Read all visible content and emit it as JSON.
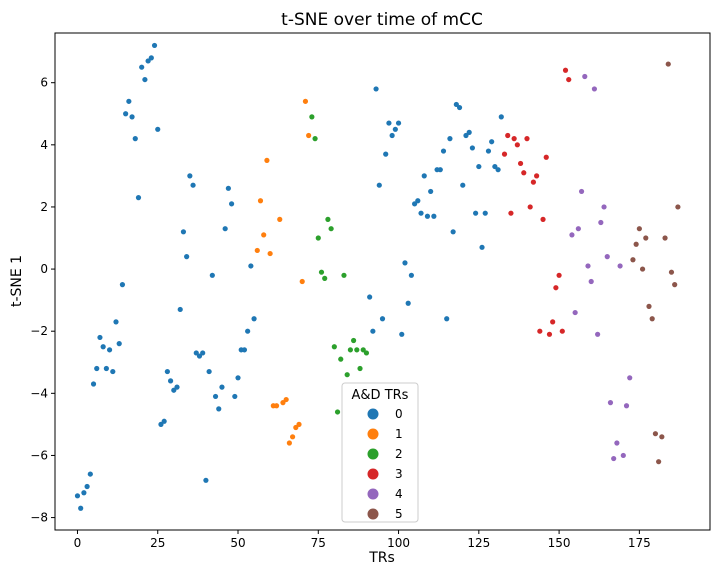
{
  "chart_data": {
    "type": "scatter",
    "title": "t-SNE over time of mCC",
    "xlabel": "TRs",
    "ylabel": "t-SNE 1",
    "xlim": [
      -7,
      197
    ],
    "ylim": [
      -8.4,
      7.6
    ],
    "xticks": [
      0,
      25,
      50,
      75,
      100,
      125,
      150,
      175
    ],
    "yticks": [
      -8,
      -6,
      -4,
      -2,
      0,
      2,
      4,
      6
    ],
    "grid": false,
    "legend": {
      "title": "A&D TRs",
      "placement": "lower-center"
    },
    "series": [
      {
        "name": "0",
        "color": "#1f77b4",
        "points": [
          [
            0,
            -7.3
          ],
          [
            1,
            -7.7
          ],
          [
            2,
            -7.2
          ],
          [
            3,
            -7.0
          ],
          [
            4,
            -6.6
          ],
          [
            5,
            -3.7
          ],
          [
            6,
            -3.2
          ],
          [
            7,
            -2.2
          ],
          [
            8,
            -2.5
          ],
          [
            9,
            -3.2
          ],
          [
            10,
            -2.6
          ],
          [
            11,
            -3.3
          ],
          [
            12,
            -1.7
          ],
          [
            13,
            -2.4
          ],
          [
            14,
            -0.5
          ],
          [
            15,
            5.0
          ],
          [
            16,
            5.4
          ],
          [
            17,
            4.9
          ],
          [
            18,
            4.2
          ],
          [
            19,
            2.3
          ],
          [
            20,
            6.5
          ],
          [
            21,
            6.1
          ],
          [
            22,
            6.7
          ],
          [
            23,
            6.8
          ],
          [
            24,
            7.2
          ],
          [
            25,
            4.5
          ],
          [
            26,
            -5.0
          ],
          [
            27,
            -4.9
          ],
          [
            28,
            -3.3
          ],
          [
            29,
            -3.6
          ],
          [
            30,
            -3.9
          ],
          [
            31,
            -3.8
          ],
          [
            32,
            -1.3
          ],
          [
            33,
            1.2
          ],
          [
            34,
            0.4
          ],
          [
            35,
            3.0
          ],
          [
            36,
            2.7
          ],
          [
            37,
            -2.7
          ],
          [
            38,
            -2.8
          ],
          [
            39,
            -2.7
          ],
          [
            40,
            -6.8
          ],
          [
            41,
            -3.3
          ],
          [
            42,
            -0.2
          ],
          [
            43,
            -4.1
          ],
          [
            44,
            -4.5
          ],
          [
            45,
            -3.8
          ],
          [
            46,
            1.3
          ],
          [
            47,
            2.6
          ],
          [
            48,
            2.1
          ],
          [
            49,
            -4.1
          ],
          [
            50,
            -3.5
          ],
          [
            51,
            -2.6
          ],
          [
            52,
            -2.6
          ],
          [
            53,
            -2.0
          ],
          [
            54,
            0.1
          ],
          [
            55,
            -1.6
          ],
          [
            91,
            -0.9
          ],
          [
            92,
            -2.0
          ],
          [
            93,
            5.8
          ],
          [
            94,
            2.7
          ],
          [
            95,
            -1.6
          ],
          [
            96,
            3.7
          ],
          [
            97,
            4.7
          ],
          [
            98,
            4.3
          ],
          [
            99,
            4.5
          ],
          [
            100,
            4.7
          ],
          [
            101,
            -2.1
          ],
          [
            102,
            0.2
          ],
          [
            103,
            -1.1
          ],
          [
            104,
            -0.2
          ],
          [
            105,
            2.1
          ],
          [
            106,
            2.2
          ],
          [
            107,
            1.8
          ],
          [
            108,
            3.0
          ],
          [
            109,
            1.7
          ],
          [
            110,
            2.5
          ],
          [
            111,
            1.7
          ],
          [
            112,
            3.2
          ],
          [
            113,
            3.2
          ],
          [
            114,
            3.8
          ],
          [
            115,
            -1.6
          ],
          [
            116,
            4.2
          ],
          [
            117,
            1.2
          ],
          [
            118,
            5.3
          ],
          [
            119,
            5.2
          ],
          [
            120,
            2.7
          ],
          [
            121,
            4.3
          ],
          [
            122,
            4.4
          ],
          [
            123,
            3.9
          ],
          [
            124,
            1.8
          ],
          [
            125,
            3.3
          ],
          [
            126,
            0.7
          ],
          [
            127,
            1.8
          ],
          [
            128,
            3.8
          ],
          [
            129,
            4.1
          ],
          [
            130,
            3.3
          ],
          [
            131,
            3.2
          ],
          [
            132,
            4.9
          ]
        ]
      },
      {
        "name": "1",
        "color": "#ff7f0e",
        "points": [
          [
            56,
            0.6
          ],
          [
            57,
            2.2
          ],
          [
            58,
            1.1
          ],
          [
            59,
            3.5
          ],
          [
            60,
            0.5
          ],
          [
            61,
            -4.4
          ],
          [
            62,
            -4.4
          ],
          [
            63,
            1.6
          ],
          [
            64,
            -4.3
          ],
          [
            65,
            -4.2
          ],
          [
            66,
            -5.6
          ],
          [
            67,
            -5.4
          ],
          [
            68,
            -5.1
          ],
          [
            69,
            -5.0
          ],
          [
            70,
            -0.4
          ],
          [
            71,
            5.4
          ],
          [
            72,
            4.3
          ]
        ]
      },
      {
        "name": "2",
        "color": "#2ca02c",
        "points": [
          [
            73,
            4.9
          ],
          [
            74,
            4.2
          ],
          [
            75,
            1.0
          ],
          [
            76,
            -0.1
          ],
          [
            77,
            -0.3
          ],
          [
            78,
            1.6
          ],
          [
            79,
            1.3
          ],
          [
            80,
            -2.5
          ],
          [
            81,
            -4.6
          ],
          [
            82,
            -2.9
          ],
          [
            83,
            -0.2
          ],
          [
            84,
            -3.4
          ],
          [
            85,
            -2.6
          ],
          [
            86,
            -2.3
          ],
          [
            87,
            -2.6
          ],
          [
            88,
            -3.2
          ],
          [
            89,
            -2.6
          ],
          [
            90,
            -2.7
          ]
        ]
      },
      {
        "name": "3",
        "color": "#d62728",
        "points": [
          [
            133,
            3.7
          ],
          [
            134,
            4.3
          ],
          [
            135,
            1.8
          ],
          [
            136,
            4.2
          ],
          [
            137,
            4.0
          ],
          [
            138,
            3.4
          ],
          [
            139,
            3.1
          ],
          [
            140,
            4.2
          ],
          [
            141,
            2.0
          ],
          [
            142,
            2.8
          ],
          [
            143,
            3.0
          ],
          [
            144,
            -2.0
          ],
          [
            145,
            1.6
          ],
          [
            146,
            3.6
          ],
          [
            147,
            -2.1
          ],
          [
            148,
            -1.7
          ],
          [
            149,
            -0.6
          ],
          [
            150,
            -0.2
          ],
          [
            151,
            -2.0
          ],
          [
            152,
            6.4
          ],
          [
            153,
            6.1
          ]
        ]
      },
      {
        "name": "4",
        "color": "#9467bd",
        "points": [
          [
            154,
            1.1
          ],
          [
            155,
            -1.4
          ],
          [
            156,
            1.3
          ],
          [
            157,
            2.5
          ],
          [
            158,
            6.2
          ],
          [
            159,
            0.1
          ],
          [
            160,
            -0.4
          ],
          [
            161,
            5.8
          ],
          [
            162,
            -2.1
          ],
          [
            163,
            1.5
          ],
          [
            164,
            2.0
          ],
          [
            165,
            0.4
          ],
          [
            166,
            -4.3
          ],
          [
            167,
            -6.1
          ],
          [
            168,
            -5.6
          ],
          [
            169,
            0.1
          ],
          [
            170,
            -6.0
          ],
          [
            171,
            -4.4
          ],
          [
            172,
            -3.5
          ]
        ]
      },
      {
        "name": "5",
        "color": "#8c564b",
        "points": [
          [
            173,
            0.3
          ],
          [
            174,
            0.8
          ],
          [
            175,
            1.3
          ],
          [
            176,
            0.0
          ],
          [
            177,
            1.0
          ],
          [
            178,
            -1.2
          ],
          [
            179,
            -1.6
          ],
          [
            180,
            -5.3
          ],
          [
            181,
            -6.2
          ],
          [
            182,
            -5.4
          ],
          [
            183,
            1.0
          ],
          [
            184,
            6.6
          ],
          [
            185,
            -0.1
          ],
          [
            186,
            -0.5
          ],
          [
            187,
            2.0
          ]
        ]
      }
    ]
  }
}
